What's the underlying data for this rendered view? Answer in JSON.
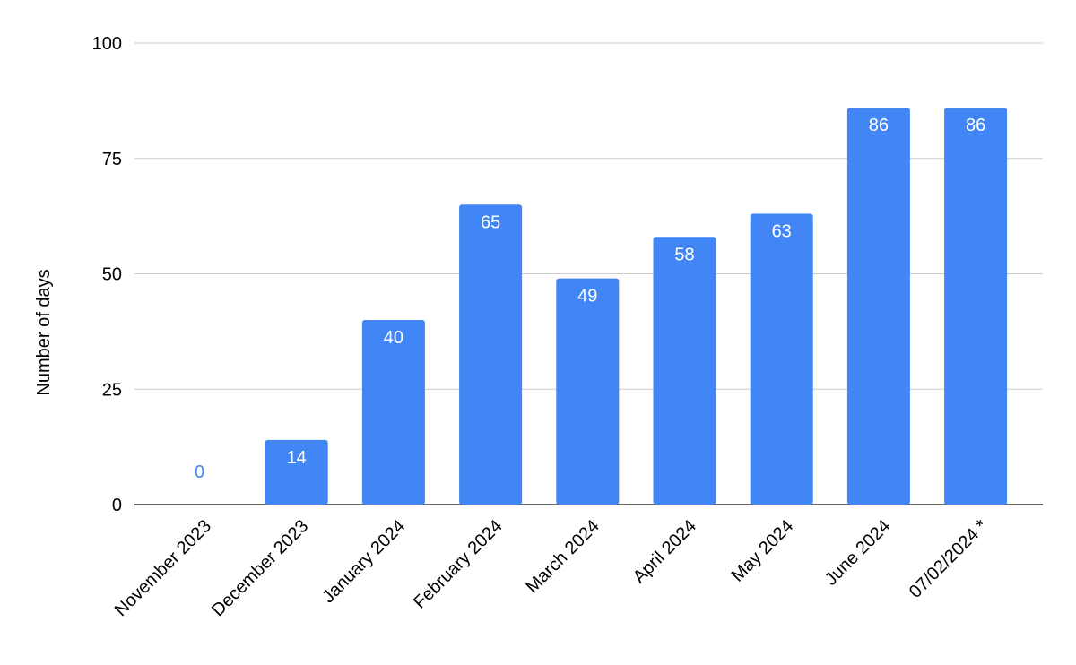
{
  "chart_data": {
    "type": "bar",
    "title": "",
    "xlabel": "",
    "ylabel": "Number of days",
    "categories": [
      "November 2023",
      "December 2023",
      "January 2024",
      "February 2024",
      "March 2024",
      "April 2024",
      "May 2024",
      "June 2024",
      "07/02/2024 *"
    ],
    "values": [
      0,
      14,
      40,
      65,
      49,
      58,
      63,
      86,
      86
    ],
    "data_labels": [
      "0",
      "14",
      "40",
      "65",
      "49",
      "58",
      "63",
      "86",
      "86"
    ],
    "ylim": [
      0,
      100
    ],
    "yticks": [
      0,
      25,
      50,
      75,
      100
    ],
    "grid": true,
    "legend": "none",
    "bar_color": "#4285f4",
    "label_color_inside": "#ffffff",
    "label_color_outside": "#4285f4"
  }
}
